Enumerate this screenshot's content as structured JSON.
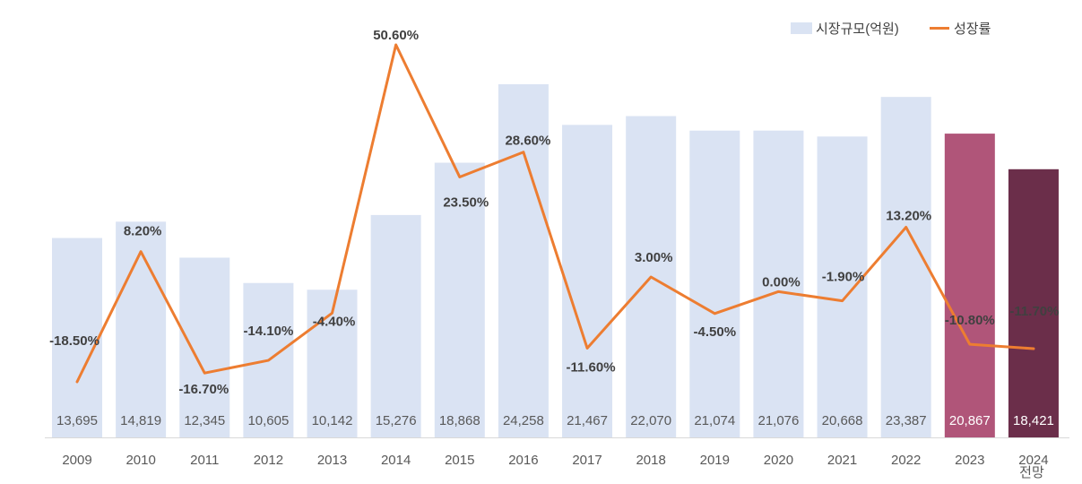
{
  "chart_data": {
    "type": "bar",
    "categories": [
      "2009",
      "2010",
      "2011",
      "2012",
      "2013",
      "2014",
      "2015",
      "2016",
      "2017",
      "2018",
      "2019",
      "2020",
      "2021",
      "2022",
      "2023",
      "2024"
    ],
    "category_sublabels": [
      "",
      "",
      "",
      "",
      "",
      "",
      "",
      "",
      "",
      "",
      "",
      "",
      "",
      "",
      "",
      "전망"
    ],
    "series": [
      {
        "name": "시장규모(억원)",
        "type": "bar",
        "values": [
          13695,
          14819,
          12345,
          10605,
          10142,
          15276,
          18868,
          24258,
          21467,
          22070,
          21074,
          21076,
          20668,
          23387,
          20867,
          18421
        ],
        "value_labels": [
          "13,695",
          "14,819",
          "12,345",
          "10,605",
          "10,142",
          "15,276",
          "18,868",
          "24,258",
          "21,467",
          "22,070",
          "21,074",
          "21,076",
          "20,668",
          "23,387",
          "20,867",
          "18,421"
        ],
        "color": "#dae3f3",
        "highlight_colors": {
          "14": "#b05579",
          "15": "#6b2e4a"
        },
        "label_color": "#595959",
        "highlight_label_color": "#ffffff"
      },
      {
        "name": "성장률",
        "type": "line",
        "values": [
          -18.5,
          8.2,
          -16.7,
          -14.1,
          -4.4,
          50.6,
          23.5,
          28.6,
          -11.6,
          3.0,
          -4.5,
          0.0,
          -1.9,
          13.2,
          -10.8,
          -11.7
        ],
        "value_labels": [
          "-18.50%",
          "8.20%",
          "-16.70%",
          "-14.10%",
          "-4.40%",
          "50.60%",
          "23.50%",
          "28.60%",
          "-11.60%",
          "3.00%",
          "-4.50%",
          "0.00%",
          "-1.90%",
          "13.20%",
          "-10.80%",
          "-11.70%"
        ],
        "color": "#ed7d31"
      }
    ],
    "bar_axis_range": [
      0,
      25000
    ],
    "line_axis_range": [
      -25,
      55
    ],
    "legend_position": "top-right",
    "grid": false
  }
}
